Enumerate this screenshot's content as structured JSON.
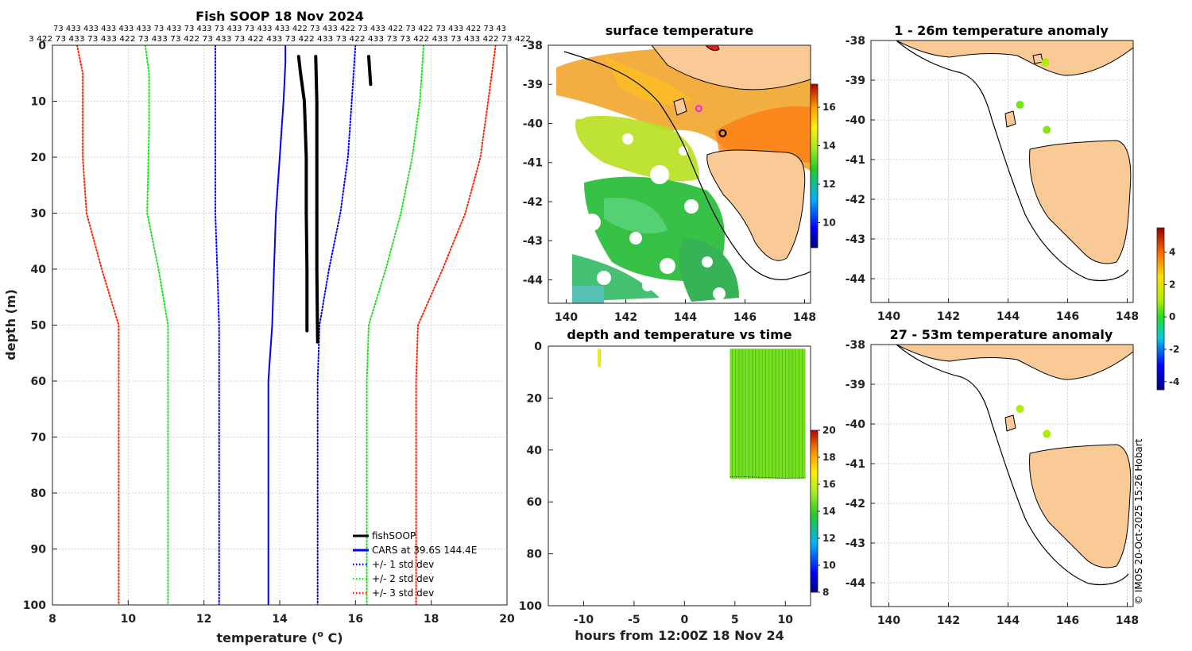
{
  "figure": {
    "credit": "© IMOS 20-Oct-2025 15:26 Hobart"
  },
  "profile_panel": {
    "title": "Fish SOOP 18 Nov 2024",
    "top_codes_line1": "73 433 433 433 433 433 73 433 73 433 73 433 73 433 433 422 73 433 422 73 433 422 73 422 73 433 422 73 43",
    "top_codes_line2": "3 422 73 433 73 433 422 73 433 73 422 73 433 73 422 433 73 422 433 73 422 433 73 73 422 433 73 433 422 73 422",
    "xlabel_main": "temperature (",
    "xlabel_sup": "o",
    "xlabel_end": " C)",
    "ylabel": "depth (m)",
    "legend": [
      {
        "label": "fishSOOP",
        "color": "#000000",
        "style": "solid"
      },
      {
        "label": "CARS at 39.6S 144.4E",
        "color": "#0000ff",
        "style": "solid"
      },
      {
        "label": "+/- 1 std dev",
        "color": "#0000ff",
        "style": "dot"
      },
      {
        "label": "+/- 2 std dev",
        "color": "#22dd22",
        "style": "dot"
      },
      {
        "label": "+/- 3 std dev",
        "color": "#ff2200",
        "style": "dot"
      }
    ]
  },
  "sst_panel": {
    "title": "surface temperature",
    "colorbar_ticks": [
      "16",
      "14",
      "12",
      "10"
    ]
  },
  "time_panel": {
    "title": "depth and temperature vs time",
    "xlabel": "hours from 12:00Z 18 Nov 24",
    "colorbar_ticks": [
      "20",
      "18",
      "16",
      "14",
      "12",
      "10",
      "8"
    ]
  },
  "anom_panel_1": {
    "title": "1 - 26m temperature anomaly"
  },
  "anom_panel_2": {
    "title": "27 - 53m temperature anomaly",
    "colorbar_ticks": [
      "4",
      "2",
      "0",
      "-2",
      "-4"
    ]
  },
  "map_axes": {
    "x_ticks": [
      "140",
      "142",
      "144",
      "146",
      "148"
    ],
    "y_ticks": [
      "-38",
      "-39",
      "-40",
      "-41",
      "-42",
      "-43",
      "-44"
    ]
  },
  "chart_data": [
    {
      "type": "line",
      "title": "Fish SOOP 18 Nov 2024",
      "xlabel": "temperature (o C)",
      "ylabel": "depth (m)",
      "xlim": [
        8,
        20
      ],
      "ylim": [
        100,
        0
      ],
      "x_ticks": [
        8,
        10,
        12,
        14,
        16,
        18,
        20
      ],
      "y_ticks": [
        0,
        10,
        20,
        30,
        40,
        50,
        60,
        70,
        80,
        90,
        100
      ],
      "series": [
        {
          "name": "CARS at 39.6S 144.4E",
          "color": "#0000ff",
          "style": "solid",
          "lineWidth": 2,
          "points": [
            [
              14.15,
              0
            ],
            [
              14.15,
              3
            ],
            [
              14.1,
              10
            ],
            [
              14.0,
              20
            ],
            [
              13.9,
              30
            ],
            [
              13.85,
              40
            ],
            [
              13.8,
              50
            ],
            [
              13.7,
              60
            ],
            [
              13.7,
              100
            ]
          ]
        },
        {
          "name": "+1 std dev",
          "color": "#0000ff",
          "style": "dot",
          "lineWidth": 2,
          "points": [
            [
              16.0,
              0
            ],
            [
              15.9,
              10
            ],
            [
              15.8,
              20
            ],
            [
              15.6,
              30
            ],
            [
              15.3,
              40
            ],
            [
              15.05,
              50
            ],
            [
              15.0,
              60
            ],
            [
              15.0,
              100
            ]
          ]
        },
        {
          "name": "-1 std dev",
          "color": "#0000ff",
          "style": "dot",
          "lineWidth": 2,
          "points": [
            [
              12.3,
              0
            ],
            [
              12.3,
              10
            ],
            [
              12.3,
              20
            ],
            [
              12.3,
              30
            ],
            [
              12.35,
              40
            ],
            [
              12.4,
              50
            ],
            [
              12.4,
              60
            ],
            [
              12.4,
              100
            ]
          ]
        },
        {
          "name": "+2 std dev",
          "color": "#22dd22",
          "style": "dot",
          "lineWidth": 2,
          "points": [
            [
              17.8,
              0
            ],
            [
              17.7,
              10
            ],
            [
              17.5,
              20
            ],
            [
              17.2,
              30
            ],
            [
              16.8,
              40
            ],
            [
              16.35,
              50
            ],
            [
              16.3,
              60
            ],
            [
              16.3,
              100
            ]
          ]
        },
        {
          "name": "-2 std dev",
          "color": "#22dd22",
          "style": "dot",
          "lineWidth": 2,
          "points": [
            [
              10.45,
              0
            ],
            [
              10.55,
              5
            ],
            [
              10.55,
              15
            ],
            [
              10.5,
              30
            ],
            [
              10.8,
              40
            ],
            [
              11.05,
              50
            ],
            [
              11.05,
              60
            ],
            [
              11.05,
              100
            ]
          ]
        },
        {
          "name": "+3 std dev",
          "color": "#ff2200",
          "style": "dot",
          "lineWidth": 2,
          "points": [
            [
              19.7,
              0
            ],
            [
              19.5,
              10
            ],
            [
              19.3,
              20
            ],
            [
              18.9,
              30
            ],
            [
              18.3,
              40
            ],
            [
              17.65,
              50
            ],
            [
              17.6,
              60
            ],
            [
              17.6,
              100
            ]
          ]
        },
        {
          "name": "-3 std dev",
          "color": "#ff2200",
          "style": "dot",
          "lineWidth": 2,
          "points": [
            [
              8.65,
              0
            ],
            [
              8.8,
              5
            ],
            [
              8.8,
              20
            ],
            [
              8.9,
              30
            ],
            [
              9.3,
              40
            ],
            [
              9.75,
              50
            ],
            [
              9.75,
              60
            ],
            [
              9.75,
              100
            ]
          ]
        },
        {
          "name": "fishSOOP a",
          "color": "#000000",
          "style": "solid",
          "lineWidth": 4,
          "points": [
            [
              14.5,
              2
            ],
            [
              14.55,
              5
            ],
            [
              14.65,
              10
            ],
            [
              14.7,
              20
            ],
            [
              14.7,
              30
            ],
            [
              14.72,
              40
            ],
            [
              14.72,
              51
            ]
          ]
        },
        {
          "name": "fishSOOP b",
          "color": "#000000",
          "style": "solid",
          "lineWidth": 4,
          "points": [
            [
              14.95,
              2
            ],
            [
              14.98,
              10
            ],
            [
              14.98,
              20
            ],
            [
              14.98,
              30
            ],
            [
              14.98,
              40
            ],
            [
              15.0,
              53
            ]
          ]
        },
        {
          "name": "fishSOOP c",
          "color": "#000000",
          "style": "solid",
          "lineWidth": 4,
          "points": [
            [
              16.35,
              2
            ],
            [
              16.38,
              5
            ],
            [
              16.4,
              7
            ]
          ]
        }
      ]
    },
    {
      "type": "scatter",
      "title": "depth and temperature vs time",
      "xlabel": "hours from 12:00Z 18 Nov 24",
      "ylabel": "",
      "xlim": [
        -13.5,
        12.5
      ],
      "ylim": [
        100,
        0
      ],
      "x_ticks": [
        -10,
        -5,
        0,
        5,
        10
      ],
      "y_ticks": [
        0,
        20,
        40,
        60,
        80,
        100
      ],
      "colorbar": {
        "min": 8,
        "max": 20,
        "ticks": [
          8,
          10,
          12,
          14,
          16,
          18,
          20
        ]
      },
      "segments": [
        {
          "name": "early cast",
          "hour_start": -8.6,
          "hour_end": -8.3,
          "depth_start": 1,
          "depth_end": 8,
          "temperature": 16.5
        },
        {
          "name": "fishing period",
          "hour_start": 4.5,
          "hour_end": 12.0,
          "depth_start": 1,
          "depth_end": 51,
          "temperature": 14.8
        }
      ]
    },
    {
      "type": "heatmap",
      "title": "surface temperature",
      "xlim": [
        139.4,
        148.2
      ],
      "ylim": [
        -44.6,
        -38
      ],
      "colorbar": {
        "min": 8.7,
        "max": 17.2,
        "ticks": [
          10,
          12,
          14,
          16
        ]
      },
      "markers": [
        {
          "name": "magenta circle",
          "lon": 144.45,
          "lat": -39.62
        },
        {
          "name": "black circle",
          "lon": 145.25,
          "lat": -40.25
        }
      ]
    },
    {
      "type": "scatter",
      "title": "1 - 26m temperature anomaly",
      "xlim": [
        139.4,
        148.2
      ],
      "ylim": [
        -44.6,
        -38
      ],
      "colorbar": {
        "min": -4.5,
        "max": 5.5,
        "ticks": [
          -4,
          -2,
          0,
          2,
          4
        ]
      },
      "points": [
        {
          "lon": 144.4,
          "lat": -39.62,
          "anomaly": 0.6
        },
        {
          "lon": 145.3,
          "lat": -40.25,
          "anomaly": 0.7
        },
        {
          "lon": 145.25,
          "lat": -38.55,
          "anomaly": 1.0
        }
      ]
    },
    {
      "type": "scatter",
      "title": "27 - 53m temperature anomaly",
      "xlim": [
        139.4,
        148.2
      ],
      "ylim": [
        -44.6,
        -38
      ],
      "colorbar": {
        "min": -4.5,
        "max": 5.5,
        "ticks": [
          -4,
          -2,
          0,
          2,
          4
        ]
      },
      "points": [
        {
          "lon": 144.4,
          "lat": -39.62,
          "anomaly": 1.0
        },
        {
          "lon": 145.3,
          "lat": -40.25,
          "anomaly": 1.0
        }
      ]
    }
  ]
}
